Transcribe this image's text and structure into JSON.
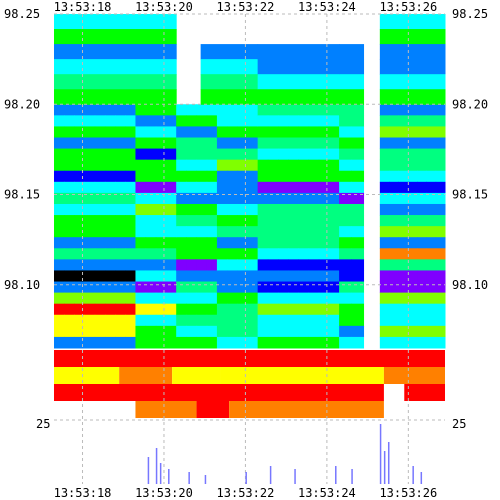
{
  "chart_data": {
    "type": "heatmap",
    "title": "",
    "xlabel": "",
    "ylabel": "",
    "x_ticks": [
      "13:53:18",
      "13:53:20",
      "13:53:22",
      "13:53:24",
      "13:53:26"
    ],
    "x_tick_times": [
      0,
      2,
      4,
      6,
      8
    ],
    "x_range": [
      -0.7,
      8.9
    ],
    "y_ticks_left": [
      "98.25",
      "98.20",
      "98.15",
      "98.10"
    ],
    "y_tick_values": [
      98.25,
      98.2,
      98.15,
      98.1
    ],
    "y_range": [
      98.065,
      98.25
    ],
    "y_ticks_right": [
      "98.25",
      "98.20",
      "98.15",
      "98.10"
    ],
    "volume_scale_label": "25",
    "grid": true,
    "palette": [
      "#000000",
      "#7f00ff",
      "#0000ff",
      "#0080ff",
      "#00ffff",
      "#00ff80",
      "#00ff00",
      "#80ff00",
      "#ffff00",
      "#ff8000",
      "#ff0000"
    ],
    "heat_columns": [
      {
        "start": -0.7,
        "end": 1.3,
        "low": [
          4,
          4,
          5,
          4,
          6,
          5,
          3,
          4,
          4,
          5,
          6,
          5,
          4,
          5,
          2,
          1,
          3,
          6,
          10,
          8,
          7,
          4
        ]
      },
      {
        "start": 1.3,
        "end": 2.3,
        "low": [
          5,
          4,
          4,
          5,
          3,
          6,
          5,
          2,
          4,
          6,
          5,
          4,
          5,
          6,
          3,
          3,
          2,
          4,
          7,
          5,
          6,
          5
        ]
      },
      {
        "start": 2.3,
        "end": 3.3,
        "low": [
          4,
          5,
          4,
          5,
          4,
          5,
          6,
          3,
          4,
          6,
          4,
          5,
          6,
          5,
          2,
          3,
          4,
          5,
          6,
          4,
          5,
          6
        ]
      },
      {
        "start": 3.3,
        "end": 4.3,
        "low": [
          5,
          4,
          5,
          4,
          5,
          6,
          4,
          3,
          2,
          5,
          6,
          4,
          4,
          6,
          3,
          4,
          3,
          5,
          6,
          5,
          4,
          5
        ]
      },
      {
        "start": 4.3,
        "end": 6.3,
        "low": [
          4,
          5,
          6,
          4,
          5,
          6,
          5,
          2,
          3,
          4,
          6,
          5,
          4,
          5,
          2,
          2,
          3,
          4,
          6,
          5,
          4,
          5
        ]
      },
      {
        "start": 6.3,
        "end": 6.9,
        "low": [
          5,
          4,
          5,
          6,
          4,
          5,
          6,
          3,
          2,
          5,
          4,
          5,
          6,
          4,
          3,
          2,
          4,
          5,
          6,
          5,
          4,
          4
        ]
      },
      {
        "start": 7.3,
        "end": 8.9,
        "low": [
          4,
          5,
          6,
          4,
          5,
          4,
          5,
          2,
          3,
          4,
          5,
          6,
          4,
          9,
          4,
          2,
          1,
          6,
          5,
          4,
          6,
          5
        ]
      }
    ],
    "heat_columns_top": [
      {
        "start": -0.7,
        "end": 1.3,
        "levels": [
          4,
          6,
          3,
          4,
          5,
          6
        ]
      },
      {
        "start": 1.3,
        "end": 2.3,
        "levels": [
          4,
          6,
          3,
          4,
          5,
          6
        ]
      },
      {
        "start": 2.9,
        "end": 4.3,
        "levels": [
          0,
          0,
          3,
          4,
          5,
          6
        ]
      },
      {
        "start": 4.3,
        "end": 6.3,
        "levels": [
          0,
          0,
          3,
          3,
          4,
          6
        ]
      },
      {
        "start": 6.3,
        "end": 6.9,
        "levels": [
          0,
          0,
          3,
          3,
          4,
          6
        ]
      },
      {
        "start": 7.3,
        "end": 8.9,
        "levels": [
          4,
          6,
          3,
          3,
          4,
          6
        ]
      }
    ],
    "depth_bands": [
      {
        "segments": [
          {
            "start": -0.7,
            "end": 8.9,
            "level": 10
          }
        ]
      },
      {
        "segments": [
          {
            "start": -0.7,
            "end": 0.9,
            "level": 8
          },
          {
            "start": 0.9,
            "end": 2.2,
            "level": 9
          },
          {
            "start": 2.2,
            "end": 3.4,
            "level": 8
          },
          {
            "start": 3.4,
            "end": 7.4,
            "level": 8
          },
          {
            "start": 7.4,
            "end": 8.9,
            "level": 9
          }
        ]
      },
      {
        "segments": [
          {
            "start": -0.7,
            "end": 7.4,
            "level": 10
          },
          {
            "start": 7.9,
            "end": 8.9,
            "level": 10
          }
        ]
      },
      {
        "segments": [
          {
            "start": 1.3,
            "end": 2.8,
            "level": 9
          },
          {
            "start": 2.8,
            "end": 3.6,
            "level": 10
          },
          {
            "start": 3.6,
            "end": 7.4,
            "level": 9
          }
        ]
      }
    ],
    "volume_bars": [
      {
        "t": 1.6,
        "v": 0.45
      },
      {
        "t": 1.8,
        "v": 0.6
      },
      {
        "t": 1.9,
        "v": 0.35
      },
      {
        "t": 2.1,
        "v": 0.25
      },
      {
        "t": 2.6,
        "v": 0.2
      },
      {
        "t": 3.0,
        "v": 0.15
      },
      {
        "t": 4.0,
        "v": 0.2
      },
      {
        "t": 4.6,
        "v": 0.3
      },
      {
        "t": 5.2,
        "v": 0.25
      },
      {
        "t": 6.2,
        "v": 0.3
      },
      {
        "t": 6.6,
        "v": 0.25
      },
      {
        "t": 7.3,
        "v": 1.0
      },
      {
        "t": 7.4,
        "v": 0.55
      },
      {
        "t": 7.5,
        "v": 0.7
      },
      {
        "t": 8.1,
        "v": 0.3
      },
      {
        "t": 8.3,
        "v": 0.2
      }
    ]
  }
}
